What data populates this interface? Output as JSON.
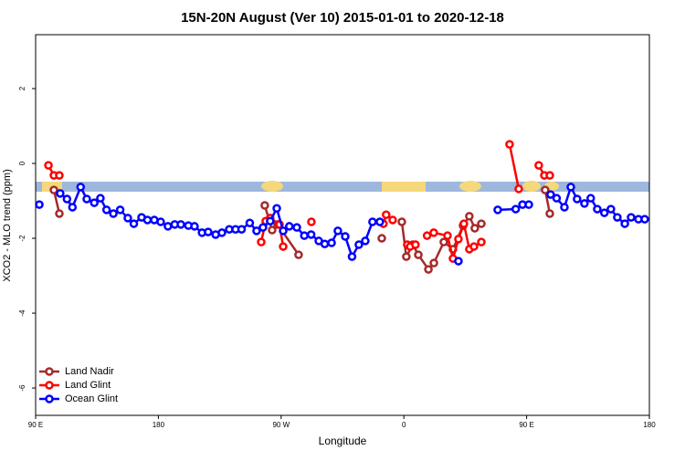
{
  "chart_data": {
    "type": "line",
    "title": "15N-20N August (Ver 10)   2015-01-01 to 2020-12-18",
    "x_label": "Longitude",
    "y_label": "XCO2 - MLO trend (ppm)",
    "xlim": [
      90,
      540
    ],
    "ylim": [
      -6.73,
      3.44
    ],
    "xticks": [
      {
        "value": 90,
        "label": "90 E"
      },
      {
        "value": 180,
        "label": "180"
      },
      {
        "value": 270,
        "label": "90 W"
      },
      {
        "value": 360,
        "label": "0"
      },
      {
        "value": 450,
        "label": "90 E"
      },
      {
        "value": 540,
        "label": "180"
      }
    ],
    "yticks": [
      -6,
      -4,
      -2,
      0,
      2
    ],
    "legend": "bottom-left",
    "series": [
      {
        "name": "Land Nadir",
        "color": "#a52a2a",
        "x": [
          103.4,
          107.4,
          null,
          258,
          263.4,
          267.4,
          282.8,
          null,
          343.8,
          null,
          358.5,
          361.8,
          366.5,
          370.6,
          378,
          382,
          389.3,
          396,
          403.4,
          408,
          412,
          416.8,
          null,
          463.6,
          467
        ],
        "values": [
          -0.71,
          -1.34,
          null,
          -1.12,
          -1.78,
          -1.63,
          -2.44,
          null,
          -2.0,
          null,
          -1.56,
          -2.49,
          -2.17,
          -2.44,
          -2.83,
          -2.66,
          -2.1,
          -2.29,
          -1.66,
          -1.41,
          -1.73,
          -1.61,
          null,
          -0.71,
          -1.34
        ]
      },
      {
        "name": "Land Glint",
        "color": "#ff0000",
        "x": [
          99.4,
          103.4,
          107.4,
          null,
          255.4,
          258.7,
          262,
          268.8,
          271.5,
          null,
          292.2,
          null,
          345,
          347,
          351.8,
          null,
          362.5,
          364.6,
          368.5,
          null,
          377,
          381.9,
          392,
          396,
          400,
          404,
          408,
          411.4,
          416.8,
          null,
          437.5,
          444.2,
          null,
          458.9,
          463,
          467
        ],
        "values": [
          -0.05,
          -0.32,
          -0.32,
          null,
          -2.1,
          -1.54,
          -1.46,
          -1.63,
          -2.22,
          null,
          -1.56,
          null,
          -1.61,
          -1.37,
          -1.51,
          null,
          -2.17,
          -2.22,
          -2.17,
          null,
          -1.93,
          -1.85,
          -1.93,
          -2.54,
          -2.02,
          -1.61,
          -2.29,
          -2.22,
          -2.1,
          null,
          0.51,
          -0.68,
          null,
          -0.05,
          -0.32,
          -0.32
        ]
      },
      {
        "name": "Ocean Glint",
        "color": "#0000ff",
        "x": [
          92.7,
          null,
          108,
          113,
          117,
          123,
          127.5,
          133,
          137.5,
          142,
          147,
          152,
          157.6,
          162,
          167.7,
          172,
          177,
          181.7,
          187,
          192,
          196.5,
          202,
          206.5,
          212,
          216.5,
          222,
          226.6,
          232,
          236.6,
          241,
          247,
          252,
          256.7,
          262,
          266.8,
          271.5,
          276,
          281.5,
          287,
          292,
          297.6,
          302,
          307,
          311.6,
          317,
          322,
          327,
          331.7,
          337,
          342.4,
          null,
          400,
          null,
          428.8,
          442,
          447,
          451.6,
          null,
          467.6,
          472,
          477.7,
          482.4,
          487,
          492.4,
          497,
          501.8,
          507,
          511.8,
          516.5,
          522,
          526.6,
          532,
          536.6
        ],
        "values": [
          -1.1,
          null,
          -0.8,
          -0.95,
          -1.17,
          -0.63,
          -0.95,
          -1.05,
          -0.93,
          -1.24,
          -1.34,
          -1.24,
          -1.46,
          -1.61,
          -1.44,
          -1.51,
          -1.51,
          -1.56,
          -1.68,
          -1.63,
          -1.63,
          -1.66,
          -1.68,
          -1.85,
          -1.83,
          -1.9,
          -1.85,
          -1.76,
          -1.76,
          -1.76,
          -1.59,
          -1.8,
          -1.71,
          -1.54,
          -1.2,
          -1.8,
          -1.68,
          -1.71,
          -1.93,
          -1.9,
          -2.07,
          -2.15,
          -2.12,
          -1.8,
          -1.95,
          -2.49,
          -2.17,
          -2.07,
          -1.56,
          -1.56,
          null,
          -2.61,
          null,
          -1.24,
          -1.22,
          -1.1,
          -1.1,
          null,
          -0.83,
          -0.93,
          -1.17,
          -0.63,
          -0.95,
          -1.07,
          -0.93,
          -1.22,
          -1.32,
          -1.22,
          -1.44,
          -1.61,
          -1.44,
          -1.49,
          -1.49
        ]
      }
    ]
  }
}
